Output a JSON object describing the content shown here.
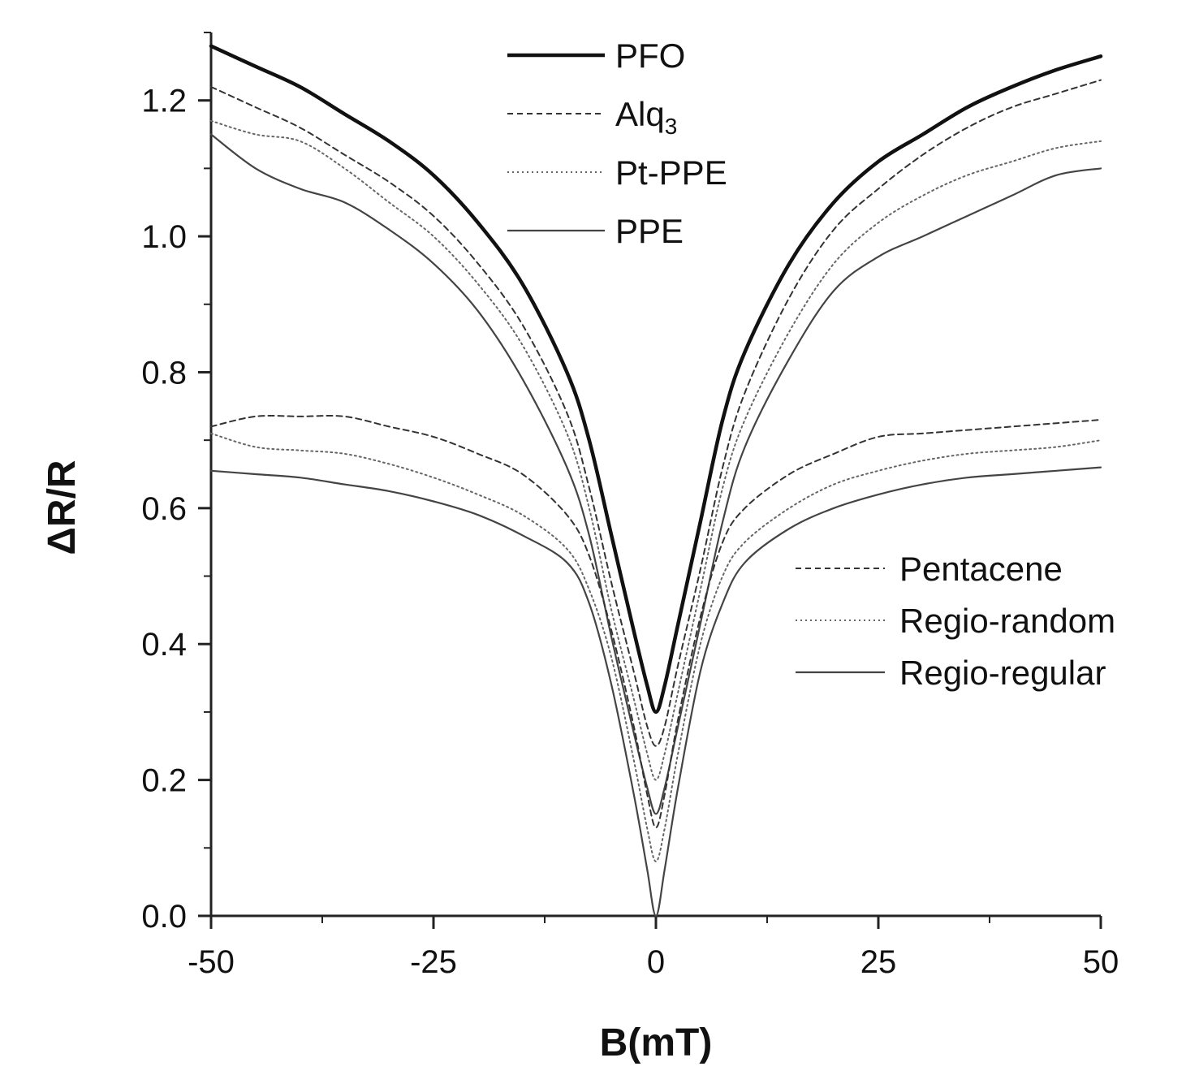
{
  "chart_data": {
    "type": "line",
    "title": "",
    "xlabel": "B(mT)",
    "ylabel": "ΔR/R",
    "xlim": [
      -50,
      50
    ],
    "ylim": [
      0,
      1.3
    ],
    "xticks": [
      -50,
      -25,
      0,
      25,
      50
    ],
    "xtick_labels": [
      "-50",
      "-25",
      "0",
      "25",
      "50"
    ],
    "yticks": [
      0,
      0.2,
      0.4,
      0.6,
      0.8,
      1.0,
      1.2
    ],
    "ytick_labels": [
      "0.0",
      "0.2",
      "0.4",
      "0.6",
      "0.8",
      "1.0",
      "1.2"
    ],
    "grid": false,
    "x": [
      -50,
      -45,
      -40,
      -35,
      -30,
      -25,
      -20,
      -15,
      -10,
      -7.5,
      -5,
      -2.5,
      -1,
      0,
      1,
      2.5,
      5,
      7.5,
      10,
      15,
      20,
      25,
      30,
      35,
      40,
      45,
      50
    ],
    "series": [
      {
        "name": "PFO",
        "sub": "",
        "style": "solid-thick",
        "legend_group": "top",
        "values": [
          1.28,
          1.25,
          1.22,
          1.18,
          1.14,
          1.09,
          1.02,
          0.93,
          0.8,
          0.7,
          0.56,
          0.42,
          0.34,
          0.3,
          0.34,
          0.43,
          0.58,
          0.73,
          0.83,
          0.96,
          1.05,
          1.11,
          1.15,
          1.19,
          1.22,
          1.245,
          1.265
        ]
      },
      {
        "name": "Alq",
        "sub": "3",
        "style": "dashed",
        "legend_group": "top",
        "values": [
          1.22,
          1.19,
          1.16,
          1.12,
          1.08,
          1.03,
          0.96,
          0.87,
          0.74,
          0.63,
          0.49,
          0.36,
          0.28,
          0.25,
          0.28,
          0.37,
          0.51,
          0.66,
          0.77,
          0.91,
          1.01,
          1.07,
          1.12,
          1.16,
          1.19,
          1.21,
          1.23
        ]
      },
      {
        "name": "Pt-PPE",
        "sub": "",
        "style": "dotted",
        "legend_group": "top",
        "values": [
          1.17,
          1.15,
          1.14,
          1.1,
          1.05,
          1.0,
          0.93,
          0.84,
          0.71,
          0.6,
          0.45,
          0.32,
          0.24,
          0.2,
          0.24,
          0.33,
          0.48,
          0.63,
          0.73,
          0.86,
          0.96,
          1.02,
          1.06,
          1.09,
          1.11,
          1.13,
          1.14
        ]
      },
      {
        "name": "PPE",
        "sub": "",
        "style": "solid",
        "legend_group": "top",
        "values": [
          1.15,
          1.1,
          1.07,
          1.05,
          1.01,
          0.96,
          0.89,
          0.79,
          0.66,
          0.56,
          0.41,
          0.27,
          0.19,
          0.15,
          0.19,
          0.28,
          0.43,
          0.58,
          0.69,
          0.82,
          0.92,
          0.97,
          1.0,
          1.03,
          1.06,
          1.09,
          1.1
        ]
      },
      {
        "name": "Pentacene",
        "sub": "",
        "style": "dashed",
        "legend_group": "bottom",
        "values": [
          0.72,
          0.735,
          0.735,
          0.735,
          0.72,
          0.705,
          0.68,
          0.65,
          0.59,
          0.53,
          0.42,
          0.28,
          0.18,
          0.13,
          0.18,
          0.29,
          0.44,
          0.55,
          0.6,
          0.65,
          0.68,
          0.705,
          0.71,
          0.715,
          0.72,
          0.725,
          0.73
        ]
      },
      {
        "name": "Regio-random",
        "sub": "",
        "style": "dotted",
        "legend_group": "bottom",
        "values": [
          0.71,
          0.69,
          0.685,
          0.68,
          0.665,
          0.645,
          0.62,
          0.59,
          0.54,
          0.48,
          0.38,
          0.23,
          0.13,
          0.08,
          0.13,
          0.24,
          0.4,
          0.5,
          0.55,
          0.6,
          0.635,
          0.655,
          0.67,
          0.68,
          0.685,
          0.69,
          0.7
        ]
      },
      {
        "name": "Regio-regular",
        "sub": "",
        "style": "solid",
        "legend_group": "bottom",
        "values": [
          0.655,
          0.65,
          0.645,
          0.635,
          0.625,
          0.61,
          0.59,
          0.56,
          0.52,
          0.46,
          0.34,
          0.18,
          0.07,
          0.0,
          0.07,
          0.19,
          0.36,
          0.46,
          0.52,
          0.57,
          0.6,
          0.62,
          0.635,
          0.645,
          0.65,
          0.655,
          0.66
        ]
      }
    ]
  }
}
